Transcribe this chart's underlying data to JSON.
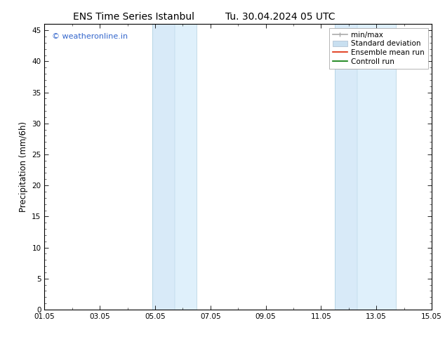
{
  "title_left": "ENS Time Series Istanbul",
  "title_right": "Tu. 30.04.2024 05 UTC",
  "ylabel": "Precipitation (mm/6h)",
  "xlim": [
    0,
    14
  ],
  "ylim": [
    0,
    46
  ],
  "yticks": [
    0,
    5,
    10,
    15,
    20,
    25,
    30,
    35,
    40,
    45
  ],
  "xtick_labels": [
    "01.05",
    "03.05",
    "05.05",
    "07.05",
    "09.05",
    "11.05",
    "13.05",
    "15.05"
  ],
  "xtick_positions": [
    0,
    2,
    4,
    6,
    8,
    10,
    12,
    14
  ],
  "shaded_regions": [
    {
      "x_start": 3.9,
      "x_end": 4.7,
      "color": "#d8eaf8"
    },
    {
      "x_start": 4.7,
      "x_end": 5.5,
      "color": "#dff0fb"
    },
    {
      "x_start": 10.5,
      "x_end": 11.3,
      "color": "#d8eaf8"
    },
    {
      "x_start": 11.3,
      "x_end": 12.7,
      "color": "#dff0fb"
    }
  ],
  "watermark_text": "© weatheronline.in",
  "watermark_color": "#3366cc",
  "legend_entries": [
    {
      "label": "min/max",
      "color": "#aaaaaa",
      "lw": 1.2,
      "style": "minmax"
    },
    {
      "label": "Standard deviation",
      "color": "#c8dff0",
      "lw": 7,
      "style": "block"
    },
    {
      "label": "Ensemble mean run",
      "color": "#dd2200",
      "lw": 1.2,
      "style": "line"
    },
    {
      "label": "Controll run",
      "color": "#007700",
      "lw": 1.2,
      "style": "line"
    }
  ],
  "bg_color": "#ffffff",
  "font_size_title": 10,
  "font_size_ticks": 7.5,
  "font_size_ylabel": 8.5,
  "font_size_legend": 7.5,
  "font_size_watermark": 8
}
